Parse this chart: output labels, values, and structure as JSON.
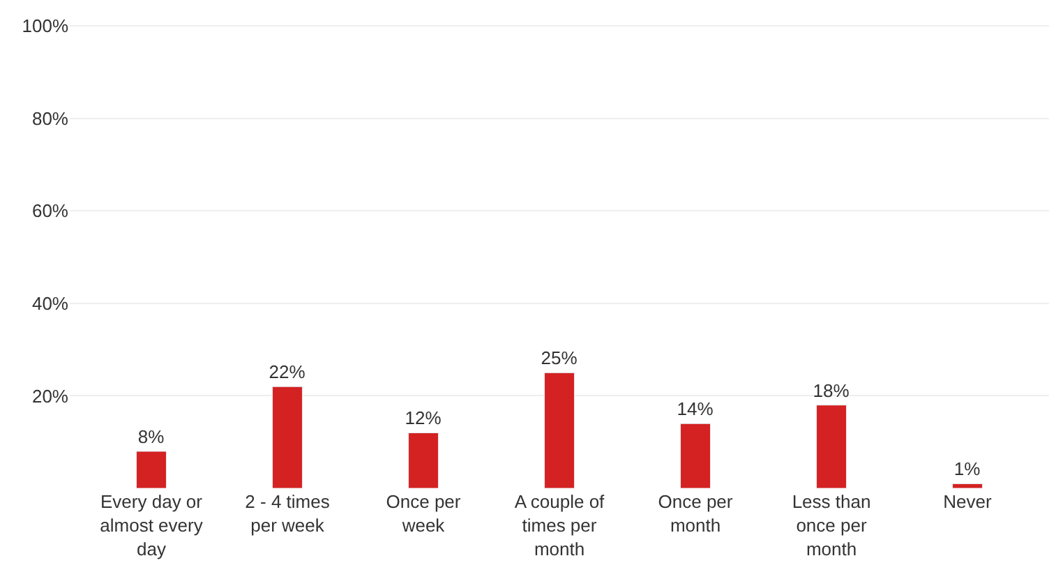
{
  "chart_data": {
    "type": "bar",
    "categories": [
      "Every day or almost every day",
      "2 - 4 times per week",
      "Once per week",
      "A couple of times per month",
      "Once per month",
      "Less than once per month",
      "Never"
    ],
    "values": [
      8,
      22,
      12,
      25,
      14,
      18,
      1
    ],
    "value_labels": [
      "8%",
      "22%",
      "12%",
      "25%",
      "14%",
      "18%",
      "1%"
    ],
    "color": "#d42121",
    "ylim": [
      0,
      100
    ],
    "yticks": [
      {
        "value": 20,
        "label": "20%"
      },
      {
        "value": 40,
        "label": "40%"
      },
      {
        "value": 60,
        "label": "60%"
      },
      {
        "value": 80,
        "label": "80%"
      },
      {
        "value": 100,
        "label": "100%"
      }
    ],
    "grid": "y"
  }
}
